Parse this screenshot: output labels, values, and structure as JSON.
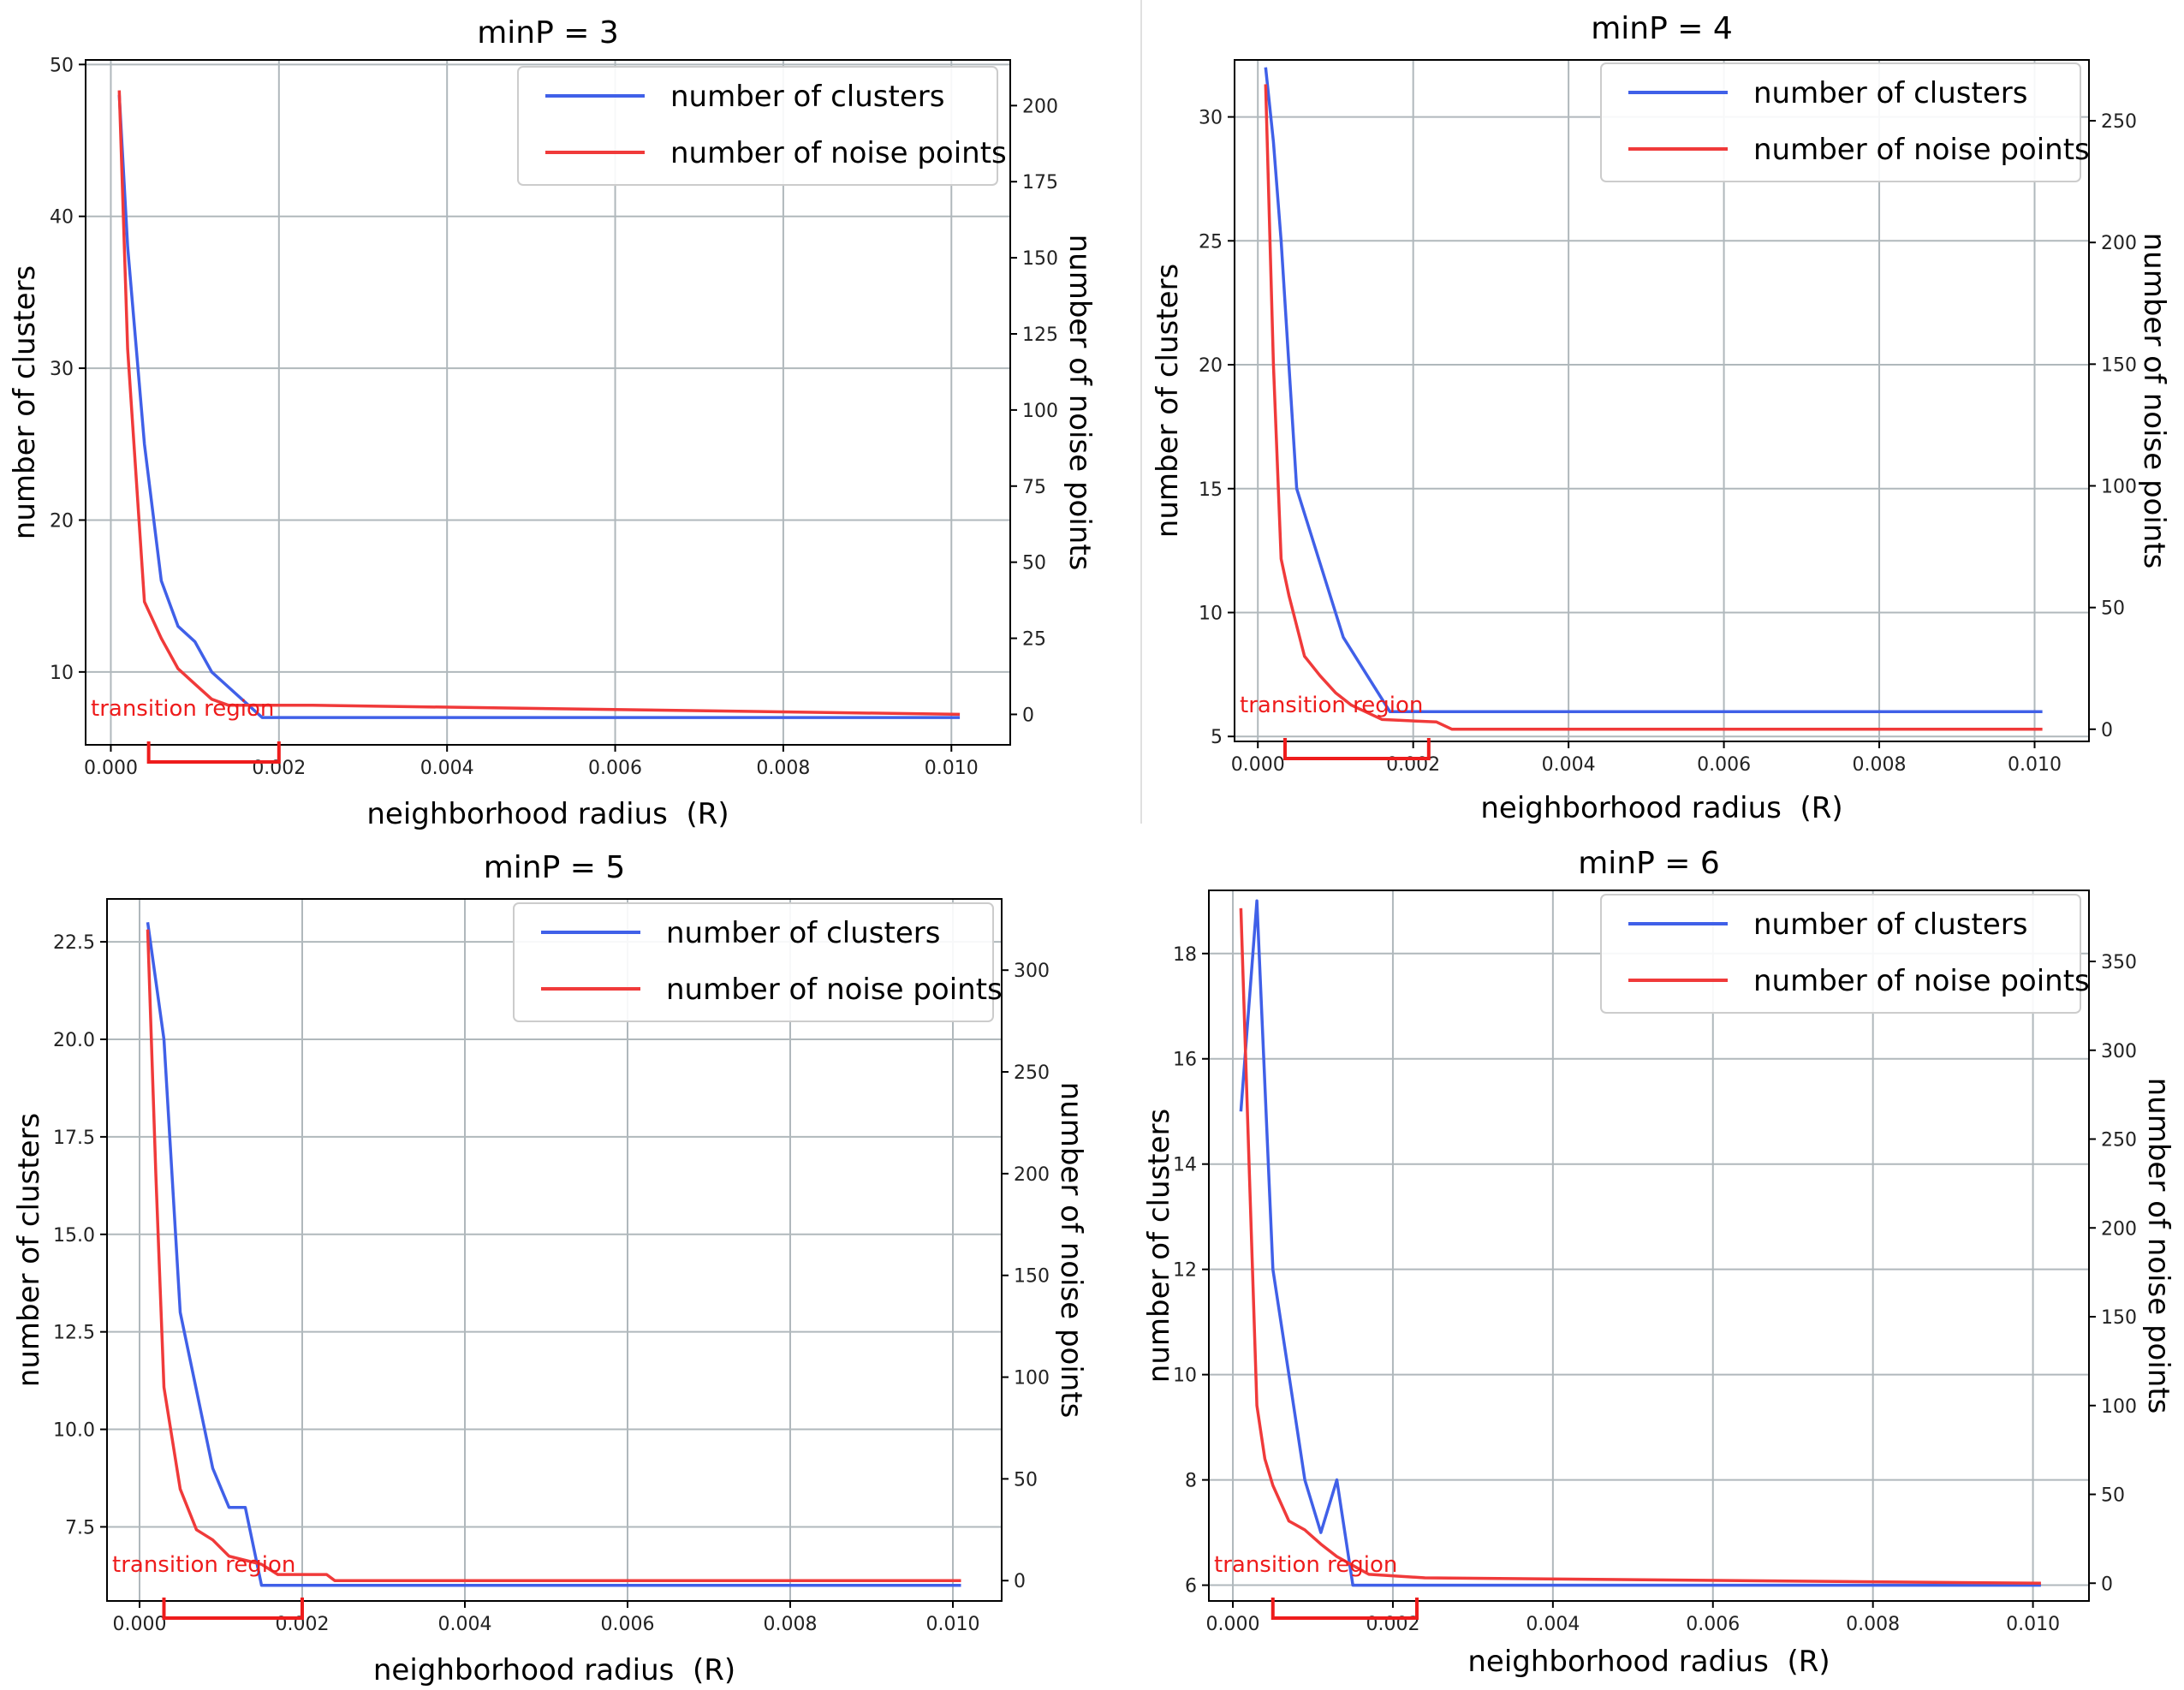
{
  "chart_data": [
    {
      "type": "line",
      "title": "minP = 3",
      "xlabel": "neighborhood radius  (R)",
      "ylabel": "number of clusters",
      "y2label": "number of noise points",
      "xlim": [
        -0.0003,
        0.0107
      ],
      "ylim": [
        5.2,
        50.3
      ],
      "y2lim": [
        -10,
        215
      ],
      "xticks": [
        "0.000",
        "0.002",
        "0.004",
        "0.006",
        "0.008",
        "0.010"
      ],
      "xtick_values": [
        0,
        0.002,
        0.004,
        0.006,
        0.008,
        0.01
      ],
      "yticks": [
        "10",
        "20",
        "30",
        "40",
        "50"
      ],
      "ytick_values": [
        10,
        20,
        30,
        40,
        50
      ],
      "y2ticks": [
        "0",
        "25",
        "50",
        "75",
        "100",
        "125",
        "150",
        "175",
        "200"
      ],
      "y2tick_values": [
        0,
        25,
        50,
        75,
        100,
        125,
        150,
        175,
        200
      ],
      "legend": "top-right",
      "annotation": {
        "text": "transition region",
        "x_start": 0.00045,
        "x_end": 0.002
      },
      "series": [
        {
          "name": "number of clusters",
          "axis": "left",
          "color": "#4060e8",
          "x": [
            0.0001,
            0.0002,
            0.0004,
            0.0006,
            0.0008,
            0.001,
            0.0012,
            0.0016,
            0.0018,
            0.0024,
            0.0101
          ],
          "values": [
            48,
            38,
            25,
            16,
            13,
            12,
            10,
            8,
            7,
            7,
            7
          ]
        },
        {
          "name": "number of noise points",
          "axis": "right",
          "color": "#f03a3a",
          "x": [
            0.0001,
            0.0002,
            0.0004,
            0.0006,
            0.0008,
            0.001,
            0.0012,
            0.0014,
            0.0018,
            0.0024,
            0.0101
          ],
          "values": [
            205,
            120,
            37,
            25,
            15,
            10,
            5,
            3,
            3,
            3,
            0
          ]
        }
      ]
    },
    {
      "type": "line",
      "title": "minP = 4",
      "xlabel": "neighborhood radius  (R)",
      "ylabel": "number of clusters",
      "y2label": "number of noise points",
      "xlim": [
        -0.0003,
        0.0107
      ],
      "ylim": [
        4.8,
        32.3
      ],
      "y2lim": [
        -5,
        275
      ],
      "xticks": [
        "0.000",
        "0.002",
        "0.004",
        "0.006",
        "0.008",
        "0.010"
      ],
      "xtick_values": [
        0,
        0.002,
        0.004,
        0.006,
        0.008,
        0.01
      ],
      "yticks": [
        "5",
        "10",
        "15",
        "20",
        "25",
        "30"
      ],
      "ytick_values": [
        5,
        10,
        15,
        20,
        25,
        30
      ],
      "y2ticks": [
        "0",
        "50",
        "100",
        "150",
        "200",
        "250"
      ],
      "y2tick_values": [
        0,
        50,
        100,
        150,
        200,
        250
      ],
      "legend": "top-right",
      "annotation": {
        "text": "transition region",
        "x_start": 0.00035,
        "x_end": 0.0022
      },
      "series": [
        {
          "name": "number of clusters",
          "axis": "left",
          "color": "#4060e8",
          "x": [
            0.0001,
            0.0002,
            0.0003,
            0.0005,
            0.0008,
            0.0011,
            0.0014,
            0.0017,
            0.002,
            0.0101
          ],
          "values": [
            32,
            29,
            25,
            15,
            12,
            9,
            7.5,
            6,
            6,
            6
          ]
        },
        {
          "name": "number of noise points",
          "axis": "right",
          "color": "#f03a3a",
          "x": [
            0.0001,
            0.0002,
            0.0003,
            0.0004,
            0.0006,
            0.0008,
            0.001,
            0.0012,
            0.0016,
            0.0023,
            0.0025,
            0.0101
          ],
          "values": [
            265,
            150,
            70,
            55,
            30,
            22,
            15,
            10,
            4,
            3,
            0,
            0
          ]
        }
      ]
    },
    {
      "type": "line",
      "title": "minP = 5",
      "xlabel": "neighborhood radius  (R)",
      "ylabel": "number of clusters",
      "y2label": "number of noise points",
      "xlim": [
        -0.0004,
        0.0106
      ],
      "ylim": [
        5.6,
        23.6
      ],
      "y2lim": [
        -10,
        335
      ],
      "xticks": [
        "0.000",
        "0.002",
        "0.004",
        "0.006",
        "0.008",
        "0.010"
      ],
      "xtick_values": [
        0,
        0.002,
        0.004,
        0.006,
        0.008,
        0.01
      ],
      "yticks": [
        "7.5",
        "10.0",
        "12.5",
        "15.0",
        "17.5",
        "20.0",
        "22.5"
      ],
      "ytick_values": [
        7.5,
        10,
        12.5,
        15,
        17.5,
        20,
        22.5
      ],
      "y2ticks": [
        "0",
        "50",
        "100",
        "150",
        "200",
        "250",
        "300"
      ],
      "y2tick_values": [
        0,
        50,
        100,
        150,
        200,
        250,
        300
      ],
      "legend": "top-right",
      "annotation": {
        "text": "transition region",
        "x_start": 0.0003,
        "x_end": 0.002
      },
      "series": [
        {
          "name": "number of clusters",
          "axis": "left",
          "color": "#4060e8",
          "x": [
            0.0001,
            0.0003,
            0.0005,
            0.0007,
            0.0009,
            0.0011,
            0.0013,
            0.0015,
            0.0024,
            0.0101
          ],
          "values": [
            23,
            20,
            13,
            11,
            9,
            8,
            8,
            6,
            6,
            6
          ]
        },
        {
          "name": "number of noise points",
          "axis": "right",
          "color": "#f03a3a",
          "x": [
            0.0001,
            0.0002,
            0.0003,
            0.0005,
            0.0007,
            0.0009,
            0.0011,
            0.0013,
            0.0015,
            0.0017,
            0.0023,
            0.0024,
            0.0101
          ],
          "values": [
            320,
            200,
            95,
            45,
            25,
            20,
            12,
            10,
            8,
            3,
            3,
            0,
            0
          ]
        }
      ]
    },
    {
      "type": "line",
      "title": "minP = 6",
      "xlabel": "neighborhood radius  (R)",
      "ylabel": "number of clusters",
      "y2label": "number of noise points",
      "xlim": [
        -0.0003,
        0.0107
      ],
      "ylim": [
        5.7,
        19.2
      ],
      "y2lim": [
        -10,
        390
      ],
      "xticks": [
        "0.000",
        "0.002",
        "0.004",
        "0.006",
        "0.008",
        "0.010"
      ],
      "xtick_values": [
        0,
        0.002,
        0.004,
        0.006,
        0.008,
        0.01
      ],
      "yticks": [
        "6",
        "8",
        "10",
        "12",
        "14",
        "16",
        "18"
      ],
      "ytick_values": [
        6,
        8,
        10,
        12,
        14,
        16,
        18
      ],
      "y2ticks": [
        "0",
        "50",
        "100",
        "150",
        "200",
        "250",
        "300",
        "350"
      ],
      "y2tick_values": [
        0,
        50,
        100,
        150,
        200,
        250,
        300,
        350
      ],
      "legend": "top-right",
      "annotation": {
        "text": "transition region",
        "x_start": 0.0005,
        "x_end": 0.0023
      },
      "series": [
        {
          "name": "number of clusters",
          "axis": "left",
          "color": "#4060e8",
          "x": [
            0.0001,
            0.0003,
            0.0005,
            0.0007,
            0.0009,
            0.0011,
            0.0013,
            0.0015,
            0.0022,
            0.0101
          ],
          "values": [
            15,
            19,
            12,
            10,
            8,
            7,
            8,
            6,
            6,
            6
          ]
        },
        {
          "name": "number of noise points",
          "axis": "right",
          "color": "#f03a3a",
          "x": [
            0.0001,
            0.0002,
            0.0003,
            0.0004,
            0.0005,
            0.0007,
            0.0009,
            0.0011,
            0.0013,
            0.0015,
            0.0017,
            0.0024,
            0.0101
          ],
          "values": [
            380,
            240,
            100,
            70,
            55,
            35,
            30,
            22,
            15,
            10,
            5,
            3,
            0
          ]
        }
      ]
    }
  ]
}
